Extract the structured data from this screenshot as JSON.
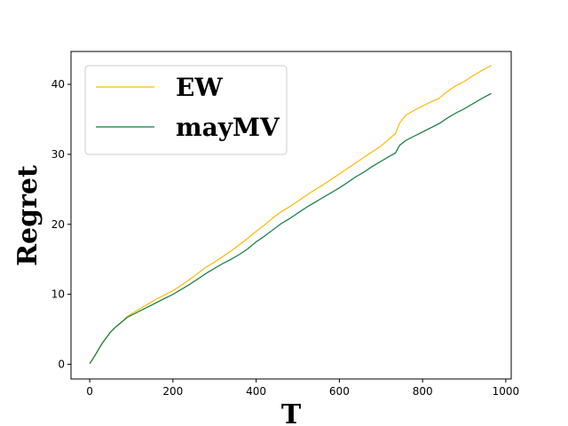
{
  "chart_data": {
    "type": "line",
    "title": "",
    "xlabel": "T",
    "ylabel": "Regret",
    "xlim": [
      -45,
      1013
    ],
    "ylim": [
      -2.1,
      44.7
    ],
    "xticks": [
      0,
      200,
      400,
      600,
      800,
      1000
    ],
    "yticks": [
      0,
      10,
      20,
      30,
      40
    ],
    "grid": false,
    "legend_position": "top-left",
    "series": [
      {
        "name": "EW",
        "color": "#ffb900",
        "x": [
          0,
          10,
          20,
          30,
          40,
          50,
          60,
          70,
          80,
          90,
          100,
          120,
          140,
          160,
          180,
          200,
          220,
          240,
          260,
          280,
          300,
          320,
          340,
          360,
          380,
          400,
          420,
          440,
          460,
          480,
          500,
          520,
          540,
          560,
          580,
          600,
          620,
          640,
          660,
          680,
          700,
          720,
          735,
          745,
          760,
          780,
          800,
          820,
          840,
          860,
          880,
          900,
          920,
          940,
          965
        ],
        "values": [
          0.1,
          1.0,
          2.0,
          3.0,
          3.8,
          4.6,
          5.2,
          5.7,
          6.2,
          6.8,
          7.2,
          7.9,
          8.6,
          9.3,
          9.9,
          10.5,
          11.3,
          12.1,
          13.0,
          13.9,
          14.6,
          15.4,
          16.2,
          17.1,
          18.0,
          19.0,
          19.9,
          20.9,
          21.8,
          22.5,
          23.3,
          24.1,
          24.9,
          25.6,
          26.4,
          27.2,
          28.0,
          28.8,
          29.6,
          30.4,
          31.2,
          32.2,
          33.0,
          34.5,
          35.6,
          36.3,
          36.9,
          37.5,
          38.0,
          39.0,
          39.8,
          40.4,
          41.2,
          41.9,
          42.7
        ]
      },
      {
        "name": "mayMV",
        "color": "#0d7a3c",
        "x": [
          0,
          10,
          20,
          30,
          40,
          50,
          60,
          70,
          80,
          90,
          100,
          120,
          140,
          160,
          180,
          200,
          220,
          240,
          260,
          280,
          300,
          320,
          340,
          360,
          380,
          400,
          420,
          440,
          460,
          480,
          500,
          520,
          540,
          560,
          580,
          600,
          620,
          640,
          660,
          680,
          700,
          720,
          735,
          745,
          760,
          780,
          800,
          820,
          840,
          860,
          880,
          900,
          920,
          940,
          965
        ],
        "values": [
          0.1,
          1.0,
          2.0,
          3.0,
          3.8,
          4.6,
          5.2,
          5.7,
          6.2,
          6.7,
          7.0,
          7.6,
          8.2,
          8.8,
          9.4,
          10.0,
          10.7,
          11.4,
          12.2,
          13.0,
          13.7,
          14.4,
          15.0,
          15.7,
          16.5,
          17.5,
          18.3,
          19.2,
          20.1,
          20.8,
          21.6,
          22.4,
          23.1,
          23.8,
          24.5,
          25.2,
          26.0,
          26.8,
          27.5,
          28.3,
          29.0,
          29.7,
          30.2,
          31.3,
          32.0,
          32.6,
          33.2,
          33.8,
          34.4,
          35.2,
          35.9,
          36.5,
          37.2,
          37.9,
          38.7
        ]
      }
    ]
  }
}
